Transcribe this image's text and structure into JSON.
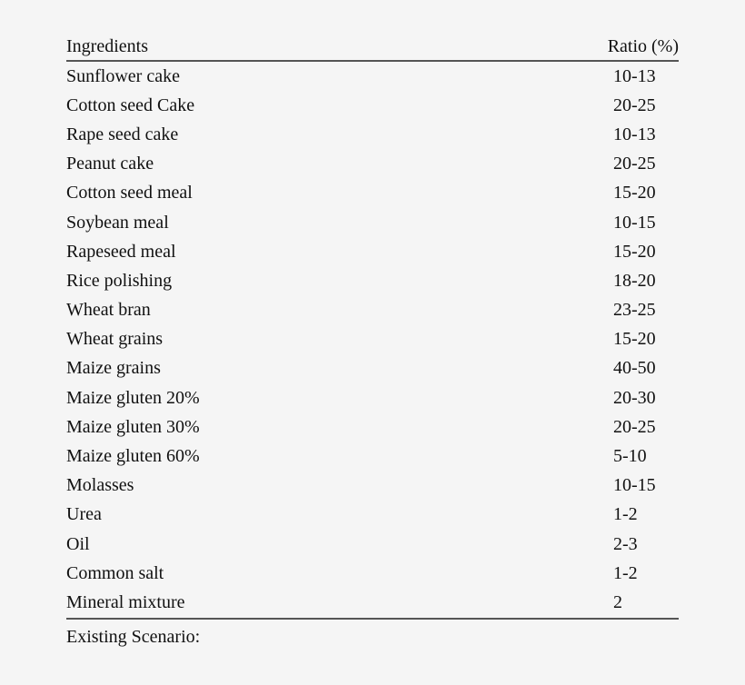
{
  "table": {
    "headers": {
      "ingredient": "Ingredients",
      "ratio": "Ratio (%)"
    },
    "rows": [
      {
        "name": "Sunflower cake",
        "ratio": "10-13"
      },
      {
        "name": "Cotton seed Cake",
        "ratio": "20-25"
      },
      {
        "name": "Rape seed cake",
        "ratio": "10-13"
      },
      {
        "name": "Peanut cake",
        "ratio": "20-25"
      },
      {
        "name": "Cotton seed meal",
        "ratio": "15-20"
      },
      {
        "name": "Soybean meal",
        "ratio": "10-15"
      },
      {
        "name": "Rapeseed meal",
        "ratio": "15-20"
      },
      {
        "name": "Rice polishing",
        "ratio": "18-20"
      },
      {
        "name": "Wheat bran",
        "ratio": "23-25"
      },
      {
        "name": "Wheat grains",
        "ratio": "15-20"
      },
      {
        "name": "Maize grains",
        "ratio": "40-50"
      },
      {
        "name": "Maize gluten 20%",
        "ratio": "20-30"
      },
      {
        "name": "Maize gluten 30%",
        "ratio": "20-25"
      },
      {
        "name": "Maize gluten 60%",
        "ratio": "5-10"
      },
      {
        "name": "Molasses",
        "ratio": "10-15"
      },
      {
        "name": "Urea",
        "ratio": "1-2"
      },
      {
        "name": "Oil",
        "ratio": "2-3"
      },
      {
        "name": "Common salt",
        "ratio": "1-2"
      },
      {
        "name": "Mineral mixture",
        "ratio": "2"
      }
    ],
    "footer": "Existing Scenario:"
  }
}
